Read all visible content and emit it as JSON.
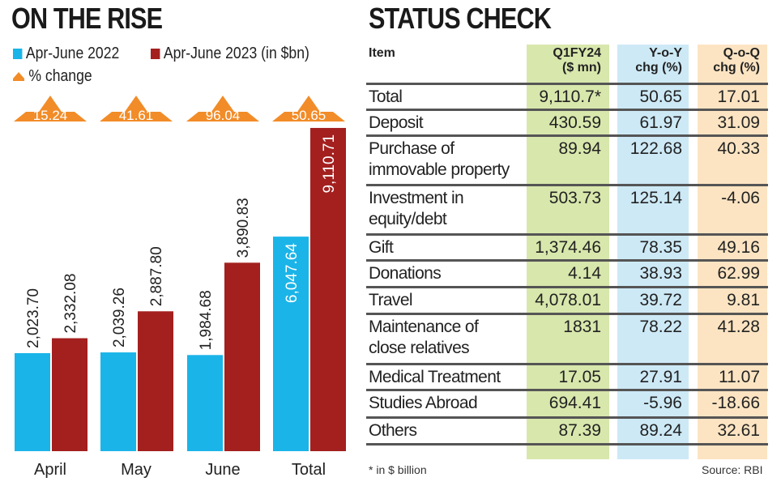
{
  "left": {
    "title": "ON THE RISE",
    "legend": [
      {
        "label": "Apr-June 2022",
        "color": "#1ab4e8"
      },
      {
        "label": "Apr-June 2023 (in $bn)",
        "color": "#a3201f"
      },
      {
        "label": "% change",
        "color": "#f28c28"
      }
    ]
  },
  "chart_data": {
    "type": "bar",
    "categories": [
      "April",
      "May",
      "June",
      "Total"
    ],
    "series": [
      {
        "name": "Apr-June 2022",
        "values": [
          2023.7,
          2039.26,
          1984.68,
          6047.64
        ],
        "labels": [
          "2,023.70",
          "2,039.26",
          "1,984.68",
          "6,047.64"
        ],
        "color": "#1ab4e8"
      },
      {
        "name": "Apr-June 2023 (in $bn)",
        "values": [
          2332.08,
          2887.8,
          3890.83,
          9110.71
        ],
        "labels": [
          "2,332.08",
          "2,887.80",
          "3,890.83",
          "9,110.71"
        ],
        "color": "#a3201f"
      }
    ],
    "pct_change": {
      "name": "% change",
      "values": [
        "15.24",
        "41.61",
        "96.04",
        "50.65"
      ],
      "color": "#f28c28"
    },
    "grid": false,
    "legend_position": "top-left"
  },
  "right": {
    "title": "STATUS CHECK",
    "headers": [
      "Item",
      "Q1FY24\n($ mn)",
      "Y-o-Y\nchg (%)",
      "Q-o-Q\nchg (%)"
    ],
    "column_colors": [
      "#d8e7ac",
      "#cde9f6",
      "#fce4c2"
    ],
    "rows": [
      [
        "Total",
        "9,110.7*",
        "50.65",
        "17.01"
      ],
      [
        "Deposit",
        "430.59",
        "61.97",
        "31.09"
      ],
      [
        "Purchase of\nimmovable property",
        "89.94",
        "122.68",
        "40.33"
      ],
      [
        "Investment in\nequity/debt",
        "503.73",
        "125.14",
        "-4.06"
      ],
      [
        "Gift",
        "1,374.46",
        "78.35",
        "49.16"
      ],
      [
        "Donations",
        "4.14",
        "38.93",
        "62.99"
      ],
      [
        "Travel",
        "4,078.01",
        "39.72",
        "9.81"
      ],
      [
        "Maintenance of\nclose relatives",
        "1831",
        "78.22",
        "41.28"
      ],
      [
        "Medical Treatment",
        "17.05",
        "27.91",
        "11.07"
      ],
      [
        "Studies Abroad",
        "694.41",
        "-5.96",
        "-18.66"
      ],
      [
        "Others",
        "87.39",
        "89.24",
        "32.61"
      ]
    ],
    "footnote": "* in $ billion",
    "source": "Source: RBI"
  }
}
